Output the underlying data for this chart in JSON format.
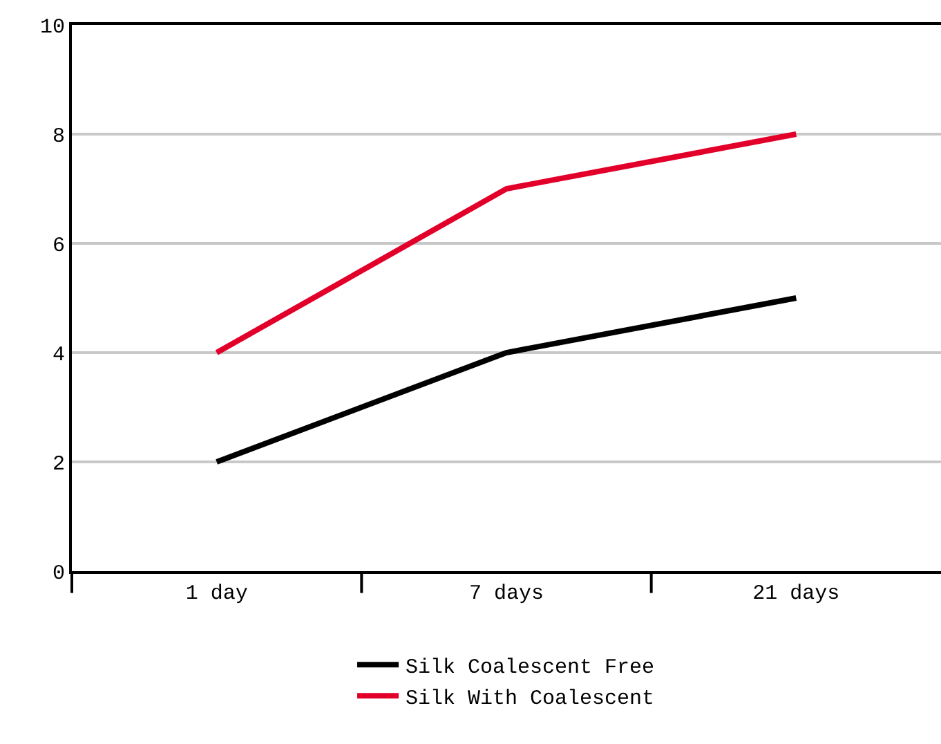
{
  "chart_data": {
    "type": "line",
    "categories": [
      "1 day",
      "7 days",
      "21 days"
    ],
    "series": [
      {
        "name": "Silk Coalescent Free",
        "color": "#000000",
        "values": [
          2,
          4,
          5
        ]
      },
      {
        "name": "Silk With Coalescent",
        "color": "#e2002b",
        "values": [
          4,
          7,
          8
        ]
      }
    ],
    "ylim": [
      0,
      10
    ],
    "yticks": [
      0,
      2,
      4,
      6,
      8,
      10
    ],
    "grid": "y",
    "legend": "bottom",
    "marker": "none",
    "line_style": "solid"
  }
}
